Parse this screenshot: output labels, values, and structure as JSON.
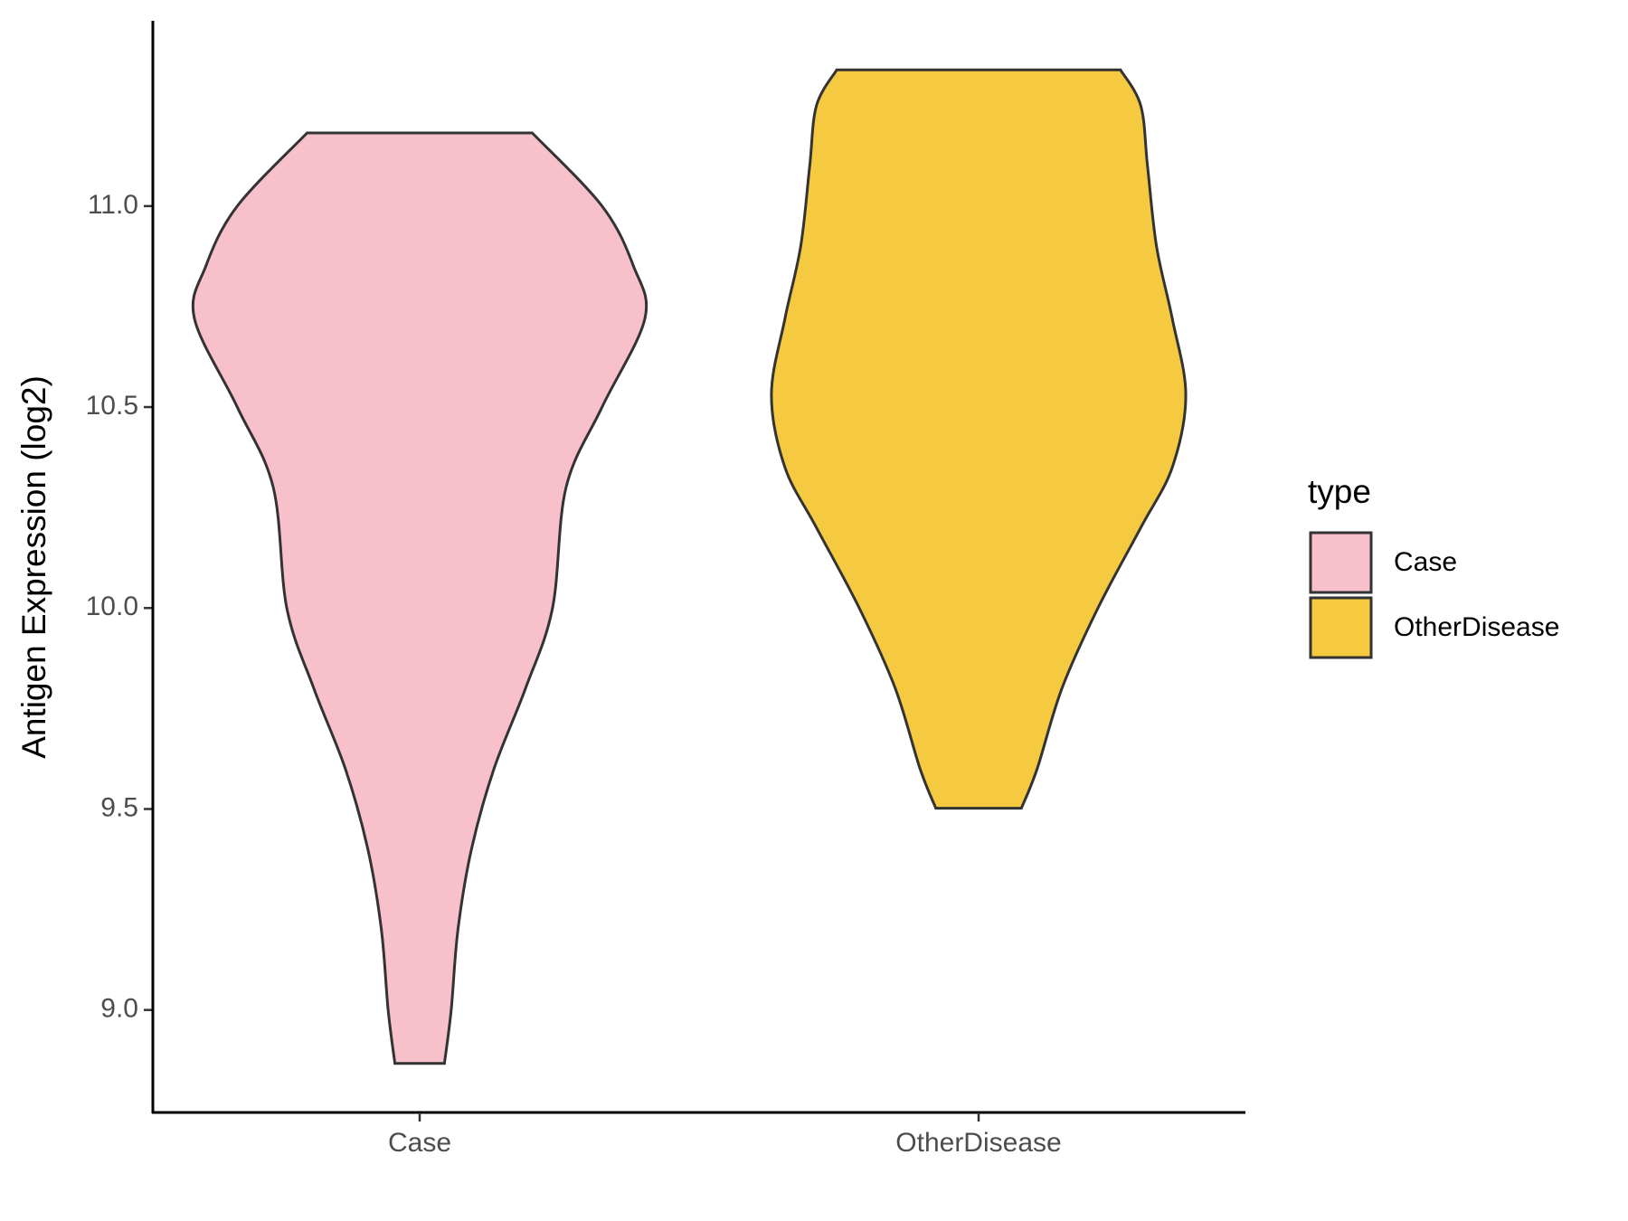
{
  "chart_data": {
    "type": "violin",
    "y_label": "Antigen Expression (log2)",
    "legend_title": "type",
    "categories": [
      "Case",
      "OtherDisease"
    ],
    "ylim": [
      8.745,
      11.461
    ],
    "yticks": [
      {
        "value": 9,
        "label": "9.0"
      },
      {
        "value": 9.5,
        "label": "9.5"
      },
      {
        "value": 10,
        "label": "10.0"
      },
      {
        "value": 10.5,
        "label": "10.5"
      },
      {
        "value": 11,
        "label": "11.0"
      }
    ],
    "series": [
      {
        "name": "Case",
        "color": "#f7c0cb",
        "values": [
          11.182,
          11.0,
          10.85,
          10.72,
          10.5,
          10.3,
          10.0,
          9.8,
          9.6,
          9.4,
          9.2,
          9.0,
          8.867
        ],
        "density": [
          0.5,
          0.81,
          0.95,
          1.0,
          0.81,
          0.65,
          0.59,
          0.47,
          0.33,
          0.23,
          0.17,
          0.14,
          0.11
        ]
      },
      {
        "name": "OtherDisease",
        "color": "#f5c940",
        "values": [
          11.339,
          11.25,
          11.1,
          10.9,
          10.72,
          10.53,
          10.35,
          10.2,
          10.0,
          9.8,
          9.6,
          9.502
        ],
        "density": [
          0.63,
          0.72,
          0.75,
          0.79,
          0.86,
          0.92,
          0.86,
          0.72,
          0.53,
          0.37,
          0.26,
          0.19
        ]
      }
    ]
  }
}
